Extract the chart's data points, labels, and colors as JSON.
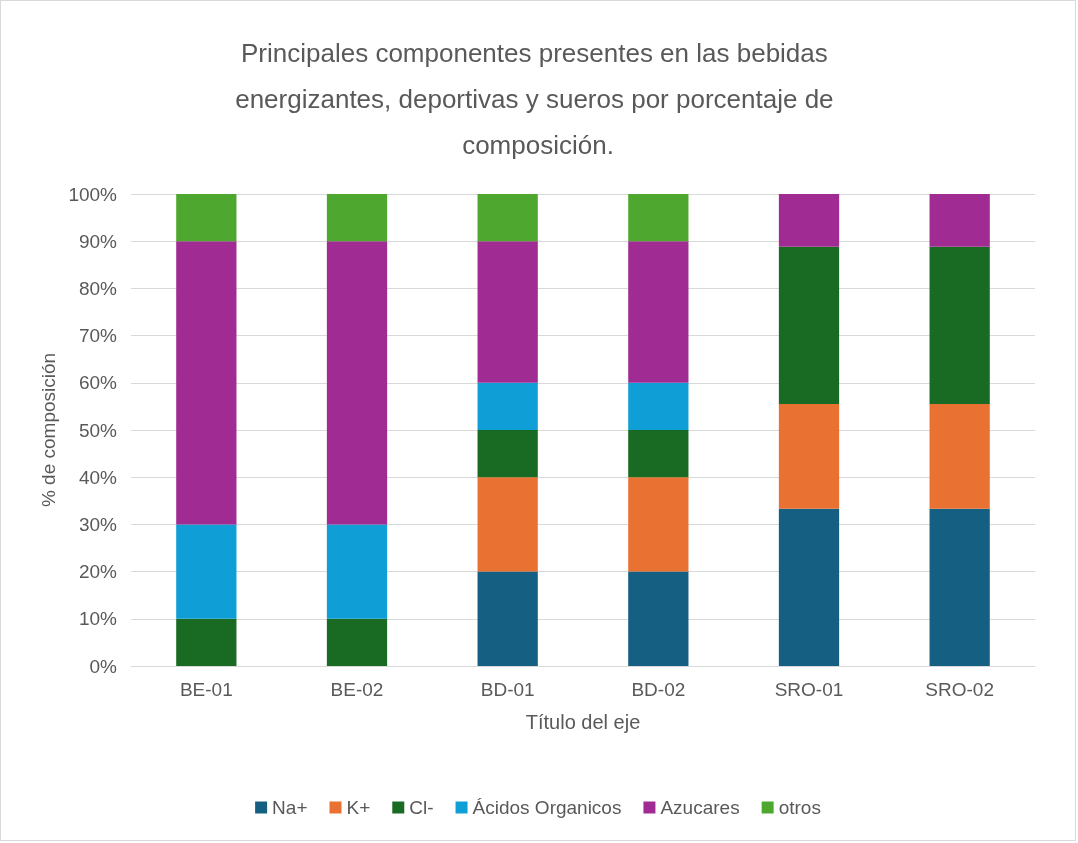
{
  "chart_data": {
    "type": "bar",
    "stacked": true,
    "title": "Principales componentes presentes en las bebidas energizantes, deportivas y sueros por porcentaje de composición.",
    "xlabel": "Título del eje",
    "ylabel": "% de composición",
    "categories": [
      "BE-01",
      "BE-02",
      "BD-01",
      "BD-02",
      "SRO-01",
      "SRO-02"
    ],
    "series": [
      {
        "name": "Na+",
        "color": "#156082",
        "values": [
          0,
          0,
          20,
          20,
          33.3,
          33.3
        ]
      },
      {
        "name": "K+",
        "color": "#e97132",
        "values": [
          0,
          0,
          20,
          20,
          22.2,
          22.2
        ]
      },
      {
        "name": "Cl-",
        "color": "#196b24",
        "values": [
          10,
          10,
          10,
          10,
          33.3,
          33.3
        ]
      },
      {
        "name": "Ácidos Organicos",
        "color": "#0f9ed5",
        "values": [
          20,
          20,
          10,
          10,
          0,
          0
        ]
      },
      {
        "name": "Azucares",
        "color": "#a02b93",
        "values": [
          60,
          60,
          30,
          30,
          11.2,
          11.2
        ]
      },
      {
        "name": "otros",
        "color": "#4ea72e",
        "values": [
          10,
          10,
          10,
          10,
          0,
          0
        ]
      }
    ],
    "ylim": [
      0,
      100
    ],
    "yticks": [
      {
        "value": 0,
        "label": "0%"
      },
      {
        "value": 10,
        "label": "10%"
      },
      {
        "value": 20,
        "label": "20%"
      },
      {
        "value": 30,
        "label": "30%"
      },
      {
        "value": 40,
        "label": "40%"
      },
      {
        "value": 50,
        "label": "50%"
      },
      {
        "value": 60,
        "label": "60%"
      },
      {
        "value": 70,
        "label": "70%"
      },
      {
        "value": 80,
        "label": "80%"
      },
      {
        "value": 90,
        "label": "90%"
      },
      {
        "value": 100,
        "label": "100%"
      }
    ],
    "grid": "y",
    "legend": "bottom"
  }
}
